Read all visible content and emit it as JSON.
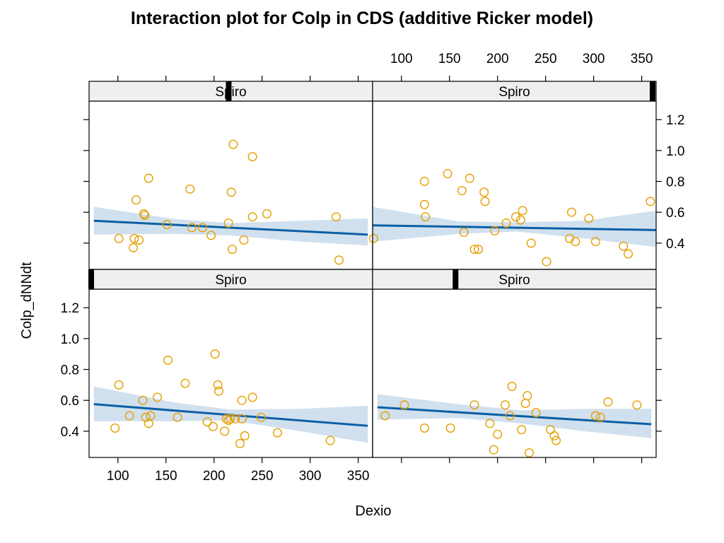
{
  "chart_data": {
    "type": "scatter",
    "title": "Interaction plot for Colp in CDS (additive Ricker model)",
    "xlabel": "Dexio",
    "ylabel": "Colp_dNNdt",
    "xlim": [
      70,
      365
    ],
    "ylim": [
      0.23,
      1.32
    ],
    "x_ticks": [
      100,
      150,
      200,
      250,
      300,
      350
    ],
    "y_ticks": [
      0.4,
      0.6,
      0.8,
      1.0,
      1.2
    ],
    "x_tick_labels": [
      "100",
      "150",
      "200",
      "250",
      "300",
      "350"
    ],
    "y_tick_labels": [
      "0.4",
      "0.6",
      "0.8",
      "1.0",
      "1.2"
    ],
    "colors": {
      "points": "#E69F00",
      "line": "#0B5FA5",
      "band": "#C9DBEB",
      "strip": "#EFEFEF"
    },
    "panels": [
      {
        "id": "bottom-left",
        "row": 0,
        "col": 0,
        "strip_label": "Spiro",
        "strip_marker": 0.0,
        "points": [
          [
            97,
            0.42
          ],
          [
            101,
            0.7
          ],
          [
            112,
            0.5
          ],
          [
            126,
            0.6
          ],
          [
            129,
            0.49
          ],
          [
            132,
            0.45
          ],
          [
            134,
            0.5
          ],
          [
            141,
            0.62
          ],
          [
            152,
            0.86
          ],
          [
            162,
            0.49
          ],
          [
            170,
            0.71
          ],
          [
            193,
            0.46
          ],
          [
            199,
            0.43
          ],
          [
            201,
            0.9
          ],
          [
            204,
            0.7
          ],
          [
            205,
            0.66
          ],
          [
            211,
            0.4
          ],
          [
            213,
            0.48
          ],
          [
            215,
            0.47
          ],
          [
            217,
            0.48
          ],
          [
            222,
            0.48
          ],
          [
            227,
            0.32
          ],
          [
            229,
            0.6
          ],
          [
            229,
            0.48
          ],
          [
            232,
            0.37
          ],
          [
            240,
            0.62
          ],
          [
            249,
            0.49
          ],
          [
            266,
            0.39
          ],
          [
            321,
            0.34
          ]
        ],
        "fit": {
          "x": [
            75,
            360
          ],
          "y": [
            0.575,
            0.435
          ]
        },
        "band": {
          "x": [
            75,
            160,
            217,
            290,
            360
          ],
          "upper": [
            0.69,
            0.585,
            0.54,
            0.545,
            0.565
          ],
          "lower": [
            0.465,
            0.465,
            0.47,
            0.4,
            0.325
          ]
        }
      },
      {
        "id": "bottom-right",
        "row": 0,
        "col": 1,
        "strip_label": "Spiro",
        "strip_marker": 0.285,
        "points": [
          [
            83,
            0.5
          ],
          [
            103,
            0.57
          ],
          [
            124,
            0.42
          ],
          [
            151,
            0.42
          ],
          [
            176,
            0.57
          ],
          [
            192,
            0.45
          ],
          [
            196,
            0.28
          ],
          [
            200,
            0.38
          ],
          [
            208,
            0.57
          ],
          [
            213,
            0.5
          ],
          [
            215,
            0.69
          ],
          [
            225,
            0.41
          ],
          [
            229,
            0.58
          ],
          [
            231,
            0.63
          ],
          [
            233,
            0.26
          ],
          [
            240,
            0.52
          ],
          [
            255,
            0.41
          ],
          [
            259,
            0.37
          ],
          [
            261,
            0.34
          ],
          [
            302,
            0.5
          ],
          [
            307,
            0.49
          ],
          [
            315,
            0.59
          ],
          [
            345,
            0.57
          ]
        ],
        "fit": {
          "x": [
            75,
            360
          ],
          "y": [
            0.555,
            0.445
          ]
        },
        "band": {
          "x": [
            75,
            160,
            225,
            290,
            360
          ],
          "upper": [
            0.64,
            0.575,
            0.535,
            0.545,
            0.545
          ],
          "lower": [
            0.475,
            0.485,
            0.45,
            0.4,
            0.355
          ]
        }
      },
      {
        "id": "top-left",
        "row": 1,
        "col": 0,
        "strip_label": "Spiro",
        "strip_marker": 0.485,
        "points": [
          [
            101,
            0.43
          ],
          [
            116,
            0.37
          ],
          [
            117,
            0.43
          ],
          [
            119,
            0.68
          ],
          [
            122,
            0.42
          ],
          [
            127,
            0.59
          ],
          [
            128,
            0.58
          ],
          [
            132,
            0.82
          ],
          [
            151,
            0.52
          ],
          [
            175,
            0.75
          ],
          [
            177,
            0.5
          ],
          [
            188,
            0.5
          ],
          [
            197,
            0.45
          ],
          [
            215,
            0.53
          ],
          [
            218,
            0.73
          ],
          [
            219,
            0.36
          ],
          [
            220,
            1.04
          ],
          [
            231,
            0.42
          ],
          [
            240,
            0.96
          ],
          [
            240,
            0.57
          ],
          [
            255,
            0.59
          ],
          [
            327,
            0.57
          ],
          [
            330,
            0.29
          ]
        ],
        "fit": {
          "x": [
            75,
            360
          ],
          "y": [
            0.545,
            0.455
          ]
        },
        "band": {
          "x": [
            75,
            160,
            217,
            290,
            360
          ],
          "upper": [
            0.635,
            0.555,
            0.53,
            0.545,
            0.56
          ],
          "lower": [
            0.455,
            0.46,
            0.45,
            0.41,
            0.385
          ]
        }
      },
      {
        "id": "top-right",
        "row": 1,
        "col": 1,
        "strip_label": "Spiro",
        "strip_marker": 0.985,
        "points": [
          [
            71,
            0.43
          ],
          [
            124,
            0.8
          ],
          [
            124,
            0.65
          ],
          [
            125,
            0.57
          ],
          [
            148,
            0.85
          ],
          [
            163,
            0.74
          ],
          [
            165,
            0.47
          ],
          [
            171,
            0.82
          ],
          [
            176,
            0.36
          ],
          [
            180,
            0.36
          ],
          [
            186,
            0.73
          ],
          [
            187,
            0.67
          ],
          [
            197,
            0.48
          ],
          [
            209,
            0.53
          ],
          [
            219,
            0.57
          ],
          [
            224,
            0.55
          ],
          [
            226,
            0.61
          ],
          [
            235,
            0.4
          ],
          [
            251,
            0.28
          ],
          [
            275,
            0.43
          ],
          [
            277,
            0.6
          ],
          [
            281,
            0.41
          ],
          [
            295,
            0.56
          ],
          [
            302,
            0.41
          ],
          [
            331,
            0.38
          ],
          [
            336,
            0.33
          ],
          [
            359,
            0.67
          ]
        ],
        "fit": {
          "x": [
            70,
            365
          ],
          "y": [
            0.515,
            0.485
          ]
        },
        "band": {
          "x": [
            70,
            160,
            220,
            290,
            365
          ],
          "upper": [
            0.635,
            0.54,
            0.535,
            0.545,
            0.61
          ],
          "lower": [
            0.41,
            0.46,
            0.475,
            0.43,
            0.375
          ]
        }
      }
    ]
  }
}
